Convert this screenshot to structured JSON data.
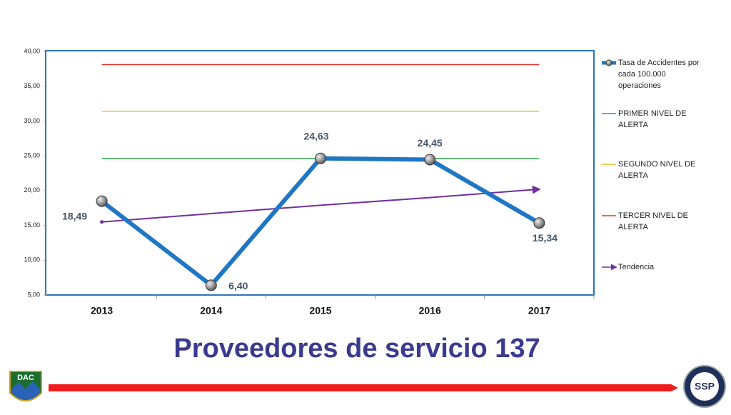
{
  "chart_data": {
    "type": "line",
    "title": "Proveedores de servicio 137",
    "categories": [
      "2013",
      "2014",
      "2015",
      "2016",
      "2017"
    ],
    "ylim": [
      5,
      40
    ],
    "yticks": [
      {
        "value": 5,
        "label": "5,00"
      },
      {
        "value": 10,
        "label": "10,00"
      },
      {
        "value": 15,
        "label": "15,00"
      },
      {
        "value": 20,
        "label": "20,00"
      },
      {
        "value": 25,
        "label": "25,00"
      },
      {
        "value": 30,
        "label": "30,00"
      },
      {
        "value": 35,
        "label": "35,00"
      },
      {
        "value": 40,
        "label": "40,00"
      }
    ],
    "series": [
      {
        "name": "Tasa de Accidentes por cada 100.000 operaciones",
        "color": "#1f77c4",
        "values": [
          18.49,
          6.4,
          24.63,
          24.45,
          15.34
        ],
        "value_labels": [
          "18,49",
          "6,40",
          "24,63",
          "24,45",
          "15,34"
        ]
      },
      {
        "name": "PRIMER NIVEL DE ALERTA",
        "color": "#2ea84a",
        "values": [
          24.6,
          24.6,
          24.6,
          24.6,
          24.6
        ]
      },
      {
        "name": "SEGUNDO NIVEL DE ALERTA",
        "color": "#f2c01e",
        "values": [
          31.4,
          31.4,
          31.4,
          31.4,
          31.4
        ]
      },
      {
        "name": "TERCER NIVEL DE ALERTA",
        "color": "#e2302a",
        "values": [
          38.1,
          38.1,
          38.1,
          38.1,
          38.1
        ]
      },
      {
        "name": "Tendencia",
        "color": "#7030a0",
        "values": [
          15.5,
          16.7,
          17.9,
          19.0,
          20.2
        ]
      }
    ]
  },
  "logos": {
    "left": "DAC",
    "right": "SSP"
  }
}
